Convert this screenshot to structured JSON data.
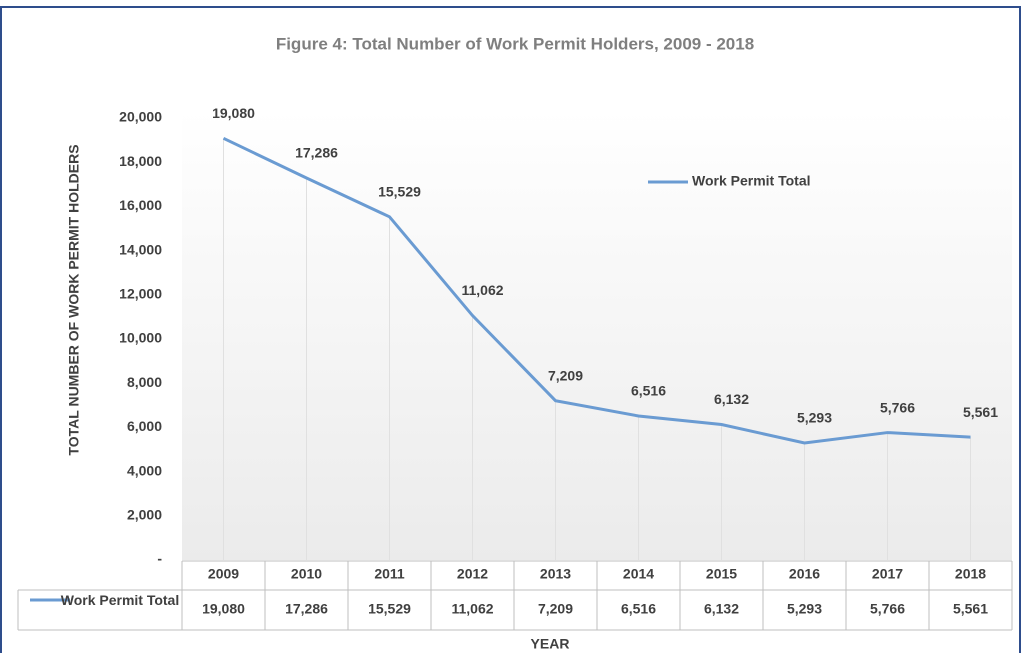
{
  "chart_data": {
    "type": "line",
    "title": "Figure 4: Total Number of Work Permit Holders, 2009 - 2018",
    "y_label": "TOTAL NUMBER OF WORK PERMIT HOLDERS",
    "x_label": "YEAR",
    "categories": [
      "2009",
      "2010",
      "2011",
      "2012",
      "2013",
      "2014",
      "2015",
      "2016",
      "2017",
      "2018"
    ],
    "series": [
      {
        "name": "Work Permit Total",
        "color": "#6a9bd2",
        "values": [
          19080,
          17286,
          15529,
          11062,
          7209,
          6516,
          6132,
          5293,
          5766,
          5561
        ],
        "value_labels": [
          "19,080",
          "17,286",
          "15,529",
          "11,062",
          "7,209",
          "6,516",
          "6,132",
          "5,293",
          "5,766",
          "5,561"
        ]
      }
    ],
    "ylim": [
      0,
      20000
    ],
    "yticks": [
      {
        "value": 0,
        "label": "-"
      },
      {
        "value": 2000,
        "label": "2,000"
      },
      {
        "value": 4000,
        "label": "4,000"
      },
      {
        "value": 6000,
        "label": "6,000"
      },
      {
        "value": 8000,
        "label": "8,000"
      },
      {
        "value": 10000,
        "label": "10,000"
      },
      {
        "value": 12000,
        "label": "12,000"
      },
      {
        "value": 14000,
        "label": "14,000"
      },
      {
        "value": 16000,
        "label": "16,000"
      },
      {
        "value": 18000,
        "label": "18,000"
      },
      {
        "value": 20000,
        "label": "20,000"
      }
    ],
    "grid": false,
    "legend": "upper right",
    "data_table": true
  }
}
